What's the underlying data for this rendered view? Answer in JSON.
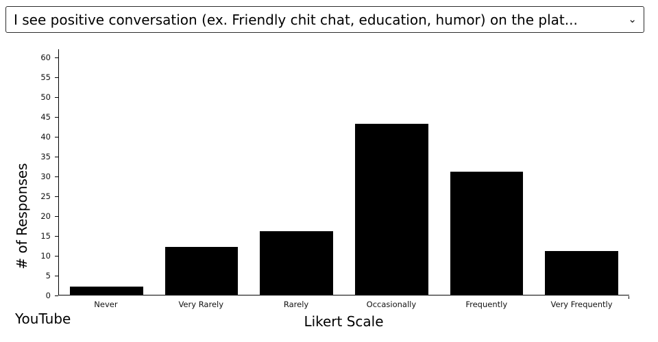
{
  "dropdown": {
    "selected": "I see positive conversation (ex. Friendly chit chat, education, humor) on the plat...",
    "chevron": "⌄"
  },
  "chart_data": {
    "type": "bar",
    "categories": [
      "Never",
      "Very Rarely",
      "Rarely",
      "Occasionally",
      "Frequently",
      "Very Frequently"
    ],
    "values": [
      2,
      12,
      16,
      43,
      31,
      11
    ],
    "title": "",
    "xlabel": "Likert Scale",
    "ylabel": "# of Responses",
    "ylim": [
      0,
      62
    ],
    "yticks": [
      0,
      5,
      10,
      15,
      20,
      25,
      30,
      35,
      40,
      45,
      50,
      55,
      60
    ],
    "bar_color": "#000000",
    "grid": false,
    "legend": "none",
    "platform_label": "YouTube"
  }
}
